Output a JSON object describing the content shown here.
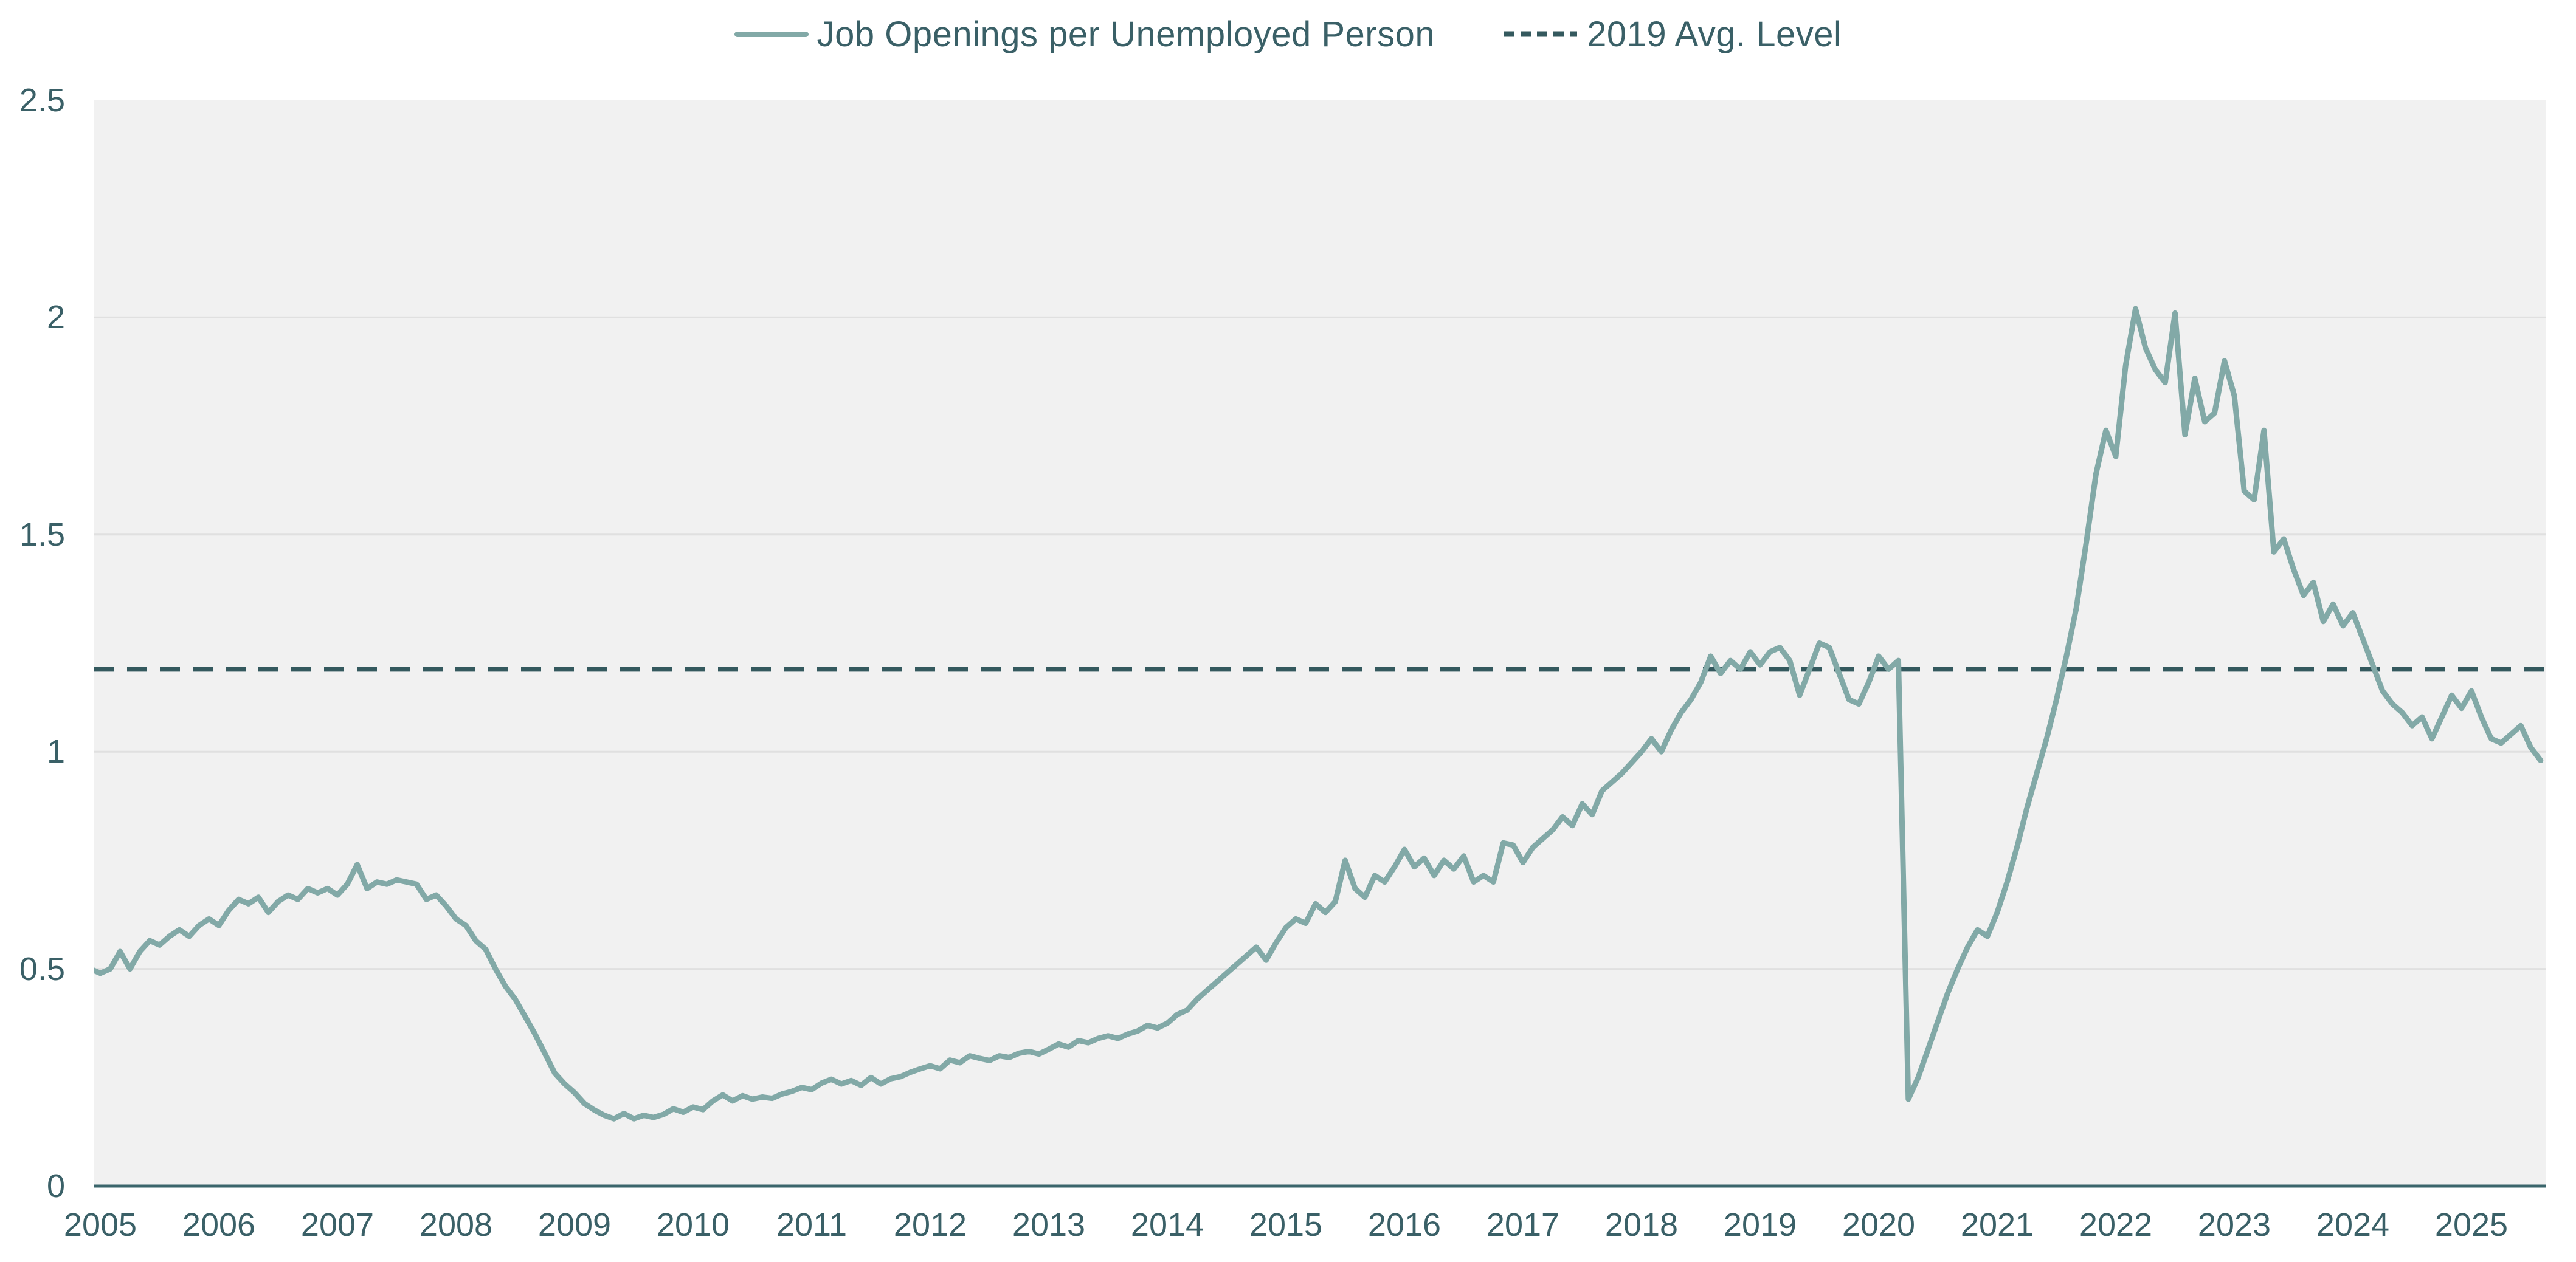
{
  "legend": {
    "series": {
      "label": "Job Openings per Unemployed Person"
    },
    "reference": {
      "label": "2019 Avg. Level"
    }
  },
  "chart_data": {
    "type": "line",
    "title": "",
    "x_unit": "month",
    "start": {
      "year": 2004,
      "month": 12
    },
    "end": {
      "year": 2025,
      "month": 8
    },
    "series": [
      {
        "name": "Job Openings per Unemployed Person",
        "values": [
          0.5,
          0.49,
          0.5,
          0.54,
          0.5,
          0.54,
          0.565,
          0.555,
          0.575,
          0.59,
          0.575,
          0.6,
          0.615,
          0.6,
          0.635,
          0.66,
          0.65,
          0.665,
          0.63,
          0.655,
          0.67,
          0.66,
          0.685,
          0.675,
          0.685,
          0.67,
          0.695,
          0.74,
          0.685,
          0.7,
          0.695,
          0.705,
          0.7,
          0.695,
          0.66,
          0.67,
          0.645,
          0.615,
          0.6,
          0.565,
          0.545,
          0.5,
          0.46,
          0.43,
          0.39,
          0.35,
          0.305,
          0.26,
          0.235,
          0.215,
          0.19,
          0.175,
          0.163,
          0.155,
          0.167,
          0.155,
          0.163,
          0.158,
          0.165,
          0.178,
          0.17,
          0.182,
          0.176,
          0.196,
          0.21,
          0.196,
          0.208,
          0.2,
          0.205,
          0.202,
          0.212,
          0.218,
          0.227,
          0.222,
          0.237,
          0.246,
          0.235,
          0.243,
          0.232,
          0.25,
          0.235,
          0.247,
          0.252,
          0.262,
          0.27,
          0.277,
          0.27,
          0.29,
          0.284,
          0.3,
          0.294,
          0.289,
          0.3,
          0.296,
          0.306,
          0.31,
          0.304,
          0.315,
          0.327,
          0.32,
          0.335,
          0.33,
          0.34,
          0.346,
          0.34,
          0.35,
          0.357,
          0.37,
          0.364,
          0.375,
          0.395,
          0.405,
          0.43,
          0.45,
          0.47,
          0.49,
          0.51,
          0.53,
          0.55,
          0.52,
          0.56,
          0.595,
          0.615,
          0.605,
          0.65,
          0.63,
          0.655,
          0.75,
          0.685,
          0.665,
          0.715,
          0.7,
          0.735,
          0.775,
          0.735,
          0.755,
          0.715,
          0.75,
          0.73,
          0.76,
          0.7,
          0.715,
          0.7,
          0.79,
          0.785,
          0.745,
          0.78,
          0.8,
          0.82,
          0.85,
          0.83,
          0.88,
          0.855,
          0.91,
          0.93,
          0.95,
          0.975,
          1.0,
          1.03,
          1.0,
          1.05,
          1.09,
          1.12,
          1.16,
          1.22,
          1.18,
          1.21,
          1.19,
          1.23,
          1.2,
          1.23,
          1.24,
          1.21,
          1.13,
          1.19,
          1.25,
          1.24,
          1.18,
          1.12,
          1.11,
          1.16,
          1.22,
          1.19,
          1.21,
          0.2,
          0.25,
          0.315,
          0.38,
          0.445,
          0.5,
          0.55,
          0.59,
          0.575,
          0.63,
          0.7,
          0.78,
          0.87,
          0.95,
          1.03,
          1.12,
          1.22,
          1.33,
          1.48,
          1.64,
          1.74,
          1.68,
          1.89,
          2.02,
          1.93,
          1.88,
          1.85,
          2.01,
          1.73,
          1.86,
          1.76,
          1.78,
          1.9,
          1.82,
          1.6,
          1.58,
          1.74,
          1.46,
          1.49,
          1.42,
          1.36,
          1.39,
          1.3,
          1.34,
          1.29,
          1.32,
          1.26,
          1.2,
          1.14,
          1.11,
          1.09,
          1.06,
          1.08,
          1.03,
          1.08,
          1.13,
          1.1,
          1.14,
          1.08,
          1.03,
          1.02,
          1.04,
          1.06,
          1.01,
          0.98
        ]
      }
    ],
    "reference_line": {
      "name": "2019 Avg. Level",
      "value": 1.19,
      "style": "dashed"
    },
    "x_ticks": [
      {
        "label": "2005",
        "year": 2005
      },
      {
        "label": "2006",
        "year": 2006
      },
      {
        "label": "2007",
        "year": 2007
      },
      {
        "label": "2008",
        "year": 2008
      },
      {
        "label": "2009",
        "year": 2009
      },
      {
        "label": "2010",
        "year": 2010
      },
      {
        "label": "2011",
        "year": 2011
      },
      {
        "label": "2012",
        "year": 2012
      },
      {
        "label": "2013",
        "year": 2013
      },
      {
        "label": "2014",
        "year": 2014
      },
      {
        "label": "2015",
        "year": 2015
      },
      {
        "label": "2016",
        "year": 2016
      },
      {
        "label": "2017",
        "year": 2017
      },
      {
        "label": "2018",
        "year": 2018
      },
      {
        "label": "2019",
        "year": 2019
      },
      {
        "label": "2020",
        "year": 2020
      },
      {
        "label": "2021",
        "year": 2021
      },
      {
        "label": "2022",
        "year": 2022
      },
      {
        "label": "2023",
        "year": 2023
      },
      {
        "label": "2024",
        "year": 2024
      },
      {
        "label": "2025",
        "year": 2025
      }
    ],
    "y_ticks": [
      {
        "label": "0",
        "value": 0
      },
      {
        "label": "0.5",
        "value": 0.5
      },
      {
        "label": "1",
        "value": 1
      },
      {
        "label": "1.5",
        "value": 1.5
      },
      {
        "label": "2",
        "value": 2
      },
      {
        "label": "2.5",
        "value": 2.5
      }
    ],
    "ylim": [
      0,
      2.5
    ],
    "grid": "horizontal",
    "legend_position": "top-center",
    "colors": {
      "plot_background": "#f1f1f1",
      "gridline": "#e0e0e0",
      "axis_line": "#3a656b",
      "tick_text": "#3a6067",
      "legend_text": "#3a6067",
      "series_line": "#82a9a7",
      "reference_line": "#34595e"
    }
  }
}
